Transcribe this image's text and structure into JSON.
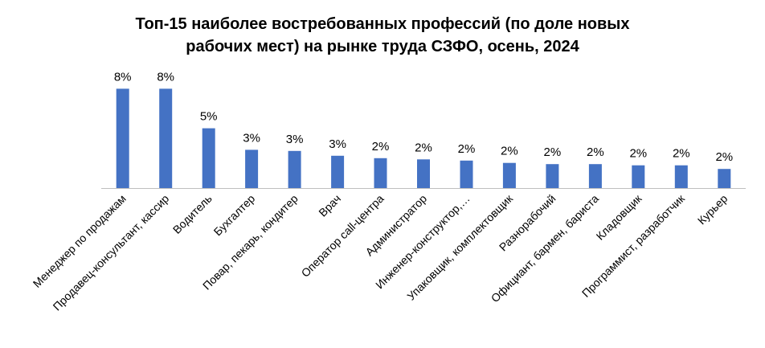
{
  "chart_data": {
    "type": "bar",
    "title_lines": [
      "Топ-15 наиболее востребованных профессий (по доле новых",
      "рабочих мест) на рынке труда СЗФО, осень, 2024"
    ],
    "categories": [
      "Менеджер по продажам",
      "Продавец-консультант, кассир",
      "Водитель",
      "Бухгалтер",
      "Повар, пекарь, кондитер",
      "Врач",
      "Оператор call-центра",
      "Администратор",
      "Инженер-конструктор,…",
      "Упаковщик, комплектовщик",
      "Разнорабочий",
      "Официант, бармен, бариста",
      "Кладовщик",
      "Программист, разработчик",
      "Курьер"
    ],
    "values": [
      8.3,
      8.3,
      5.0,
      3.2,
      3.1,
      2.7,
      2.5,
      2.4,
      2.3,
      2.1,
      2.0,
      2.0,
      1.9,
      1.9,
      1.6
    ],
    "value_labels": [
      "8%",
      "8%",
      "5%",
      "3%",
      "3%",
      "3%",
      "2%",
      "2%",
      "2%",
      "2%",
      "2%",
      "2%",
      "2%",
      "2%",
      "2%"
    ],
    "ylim": [
      0,
      9
    ],
    "grid": false,
    "legend": "none",
    "bar_color": "#4472C4"
  }
}
